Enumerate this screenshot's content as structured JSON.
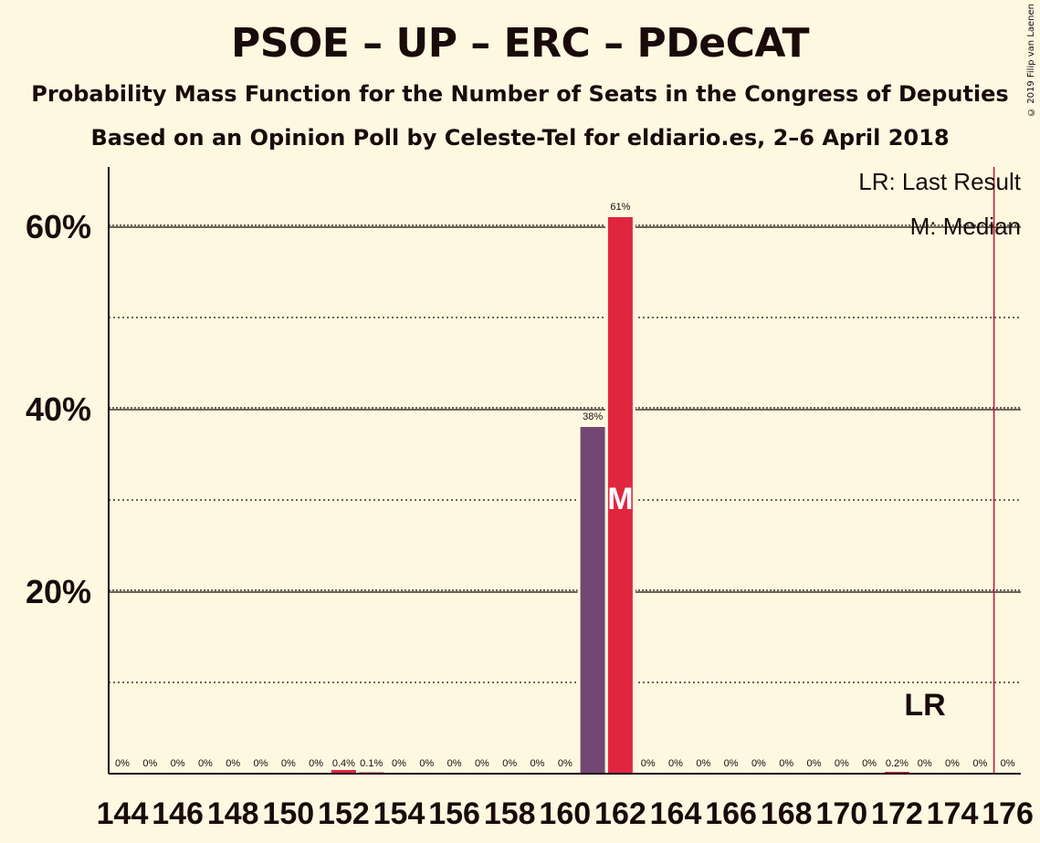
{
  "title": "PSOE – UP – ERC – PDeCAT",
  "subtitle1": "Probability Mass Function for the Number of Seats in the Congress of Deputies",
  "subtitle2": "Based on an Opinion Poll by Celeste-Tel for eldiario.es, 2–6 April 2018",
  "copyright": "© 2019 Filip van Laenen",
  "legend": {
    "last_result": "LR: Last Result",
    "median": "M: Median"
  },
  "markers": {
    "median_label": "M",
    "last_result_label": "LR"
  },
  "colors": {
    "background": "#fff8e1",
    "bar_primary": "#e0263f",
    "bar_secondary": "#734773",
    "last_result_line": "#c0112a",
    "text": "#1a0a0a"
  },
  "chart_data": {
    "type": "bar",
    "x": [
      144,
      145,
      146,
      147,
      148,
      149,
      150,
      151,
      152,
      153,
      154,
      155,
      156,
      157,
      158,
      159,
      160,
      161,
      162,
      163,
      164,
      165,
      166,
      167,
      168,
      169,
      170,
      171,
      172,
      173,
      174,
      175,
      176
    ],
    "values": [
      0,
      0,
      0,
      0,
      0,
      0,
      0,
      0,
      0.4,
      0.1,
      0,
      0,
      0,
      0,
      0,
      0,
      0,
      38,
      61,
      0,
      0,
      0,
      0,
      0,
      0,
      0,
      0,
      0,
      0.2,
      0,
      0,
      0,
      0
    ],
    "value_labels": [
      "0%",
      "0%",
      "0%",
      "0%",
      "0%",
      "0%",
      "0%",
      "0%",
      "0.4%",
      "0.1%",
      "0%",
      "0%",
      "0%",
      "0%",
      "0%",
      "0%",
      "0%",
      "38%",
      "61%",
      "0%",
      "0%",
      "0%",
      "0%",
      "0%",
      "0%",
      "0%",
      "0%",
      "0%",
      "0.2%",
      "0%",
      "0%",
      "0%",
      "0%"
    ],
    "x_tick_labels": [
      "144",
      "146",
      "148",
      "150",
      "152",
      "154",
      "156",
      "158",
      "160",
      "162",
      "164",
      "166",
      "168",
      "170",
      "172",
      "174",
      "176"
    ],
    "y_tick_labels": [
      "20%",
      "40%",
      "60%"
    ],
    "y_ticks": [
      20,
      40,
      60
    ],
    "y_minor_ticks": [
      10,
      30,
      50
    ],
    "ylim": [
      0,
      66.5
    ],
    "median_seat": 162,
    "last_result_seat": 176,
    "secondary_bar_seat": 161,
    "grid": true
  }
}
